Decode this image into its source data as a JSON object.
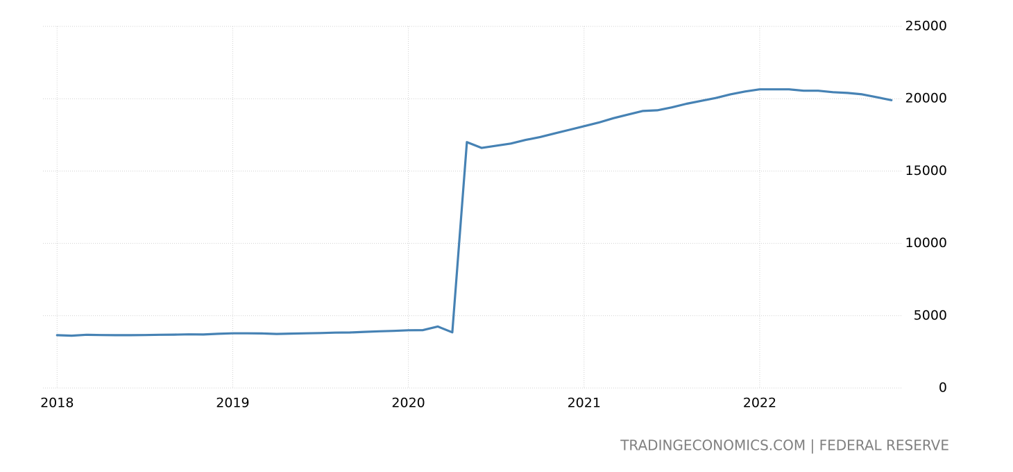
{
  "chart_data": {
    "type": "line",
    "x": [
      2018,
      2018.083,
      2018.167,
      2018.25,
      2018.333,
      2018.417,
      2018.5,
      2018.583,
      2018.667,
      2018.75,
      2018.833,
      2018.917,
      2019,
      2019.083,
      2019.167,
      2019.25,
      2019.333,
      2019.417,
      2019.5,
      2019.583,
      2019.667,
      2019.75,
      2019.833,
      2019.917,
      2020,
      2020.083,
      2020.167,
      2020.25,
      2020.333,
      2020.417,
      2020.5,
      2020.583,
      2020.667,
      2020.75,
      2020.833,
      2020.917,
      2021,
      2021.083,
      2021.167,
      2021.25,
      2021.333,
      2021.417,
      2021.5,
      2021.583,
      2021.667,
      2021.75,
      2021.833,
      2021.917,
      2022,
      2022.083,
      2022.167,
      2022.25,
      2022.333,
      2022.417,
      2022.5,
      2022.583,
      2022.667,
      2022.75
    ],
    "series": [
      {
        "color": "#4682b4",
        "values": [
          3650,
          3620,
          3680,
          3660,
          3650,
          3650,
          3660,
          3680,
          3690,
          3710,
          3700,
          3750,
          3780,
          3780,
          3770,
          3740,
          3760,
          3780,
          3800,
          3830,
          3840,
          3880,
          3920,
          3950,
          3990,
          4000,
          4250,
          3850,
          17000,
          16600,
          16750,
          16900,
          17150,
          17350,
          17600,
          17850,
          18100,
          18350,
          18650,
          18900,
          19150,
          19200,
          19400,
          19650,
          19850,
          20050,
          20300,
          20500,
          20650,
          20650,
          20650,
          20550,
          20550,
          20450,
          20400,
          20300,
          20100,
          19900
        ]
      }
    ],
    "xlim": [
      2017.92,
      2022.81
    ],
    "xticks": [
      2018,
      2019,
      2020,
      2021,
      2022
    ],
    "ylim": [
      0,
      25000
    ],
    "yticks": [
      0,
      5000,
      10000,
      15000,
      20000,
      25000
    ],
    "grid": true,
    "source": "TRADINGECONOMICS.COM | FEDERAL RESERVE"
  }
}
